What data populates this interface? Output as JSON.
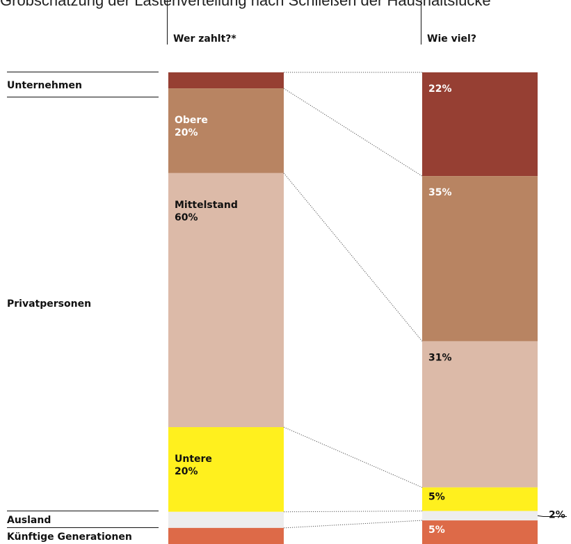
{
  "title": "Grobschätzung der Lastenverteilung nach Schließen der Haushaltslücke",
  "headers": {
    "left": "Wer zahlt?*",
    "right": "Wie viel?"
  },
  "row_labels": {
    "unternehmen": "Unternehmen",
    "privatpersonen": "Privatpersonen",
    "ausland": "Ausland",
    "kuenftige": "Künftige Generationen"
  },
  "colors": {
    "unternehmen": "#963f33",
    "obere": "#b88462",
    "mittelstand": "#dcbaa8",
    "untere": "#fff01e",
    "ausland": "#ededed",
    "kuenftige": "#dd6a48"
  },
  "chart_data": {
    "type": "bar",
    "title": "Grobschätzung der Lastenverteilung nach Schließen der Haushaltslücke",
    "categories": [
      "Wer zahlt?*",
      "Wie viel?"
    ],
    "segments": [
      {
        "key": "unternehmen",
        "group": "Unternehmen",
        "left_label": "",
        "right_label": "22%",
        "left_share": 3.8,
        "right_value": 22
      },
      {
        "key": "obere",
        "group": "Privatpersonen",
        "left_label": "Obere\n20%",
        "right_label": "35%",
        "left_share": 20,
        "right_value": 35
      },
      {
        "key": "mittelstand",
        "group": "Privatpersonen",
        "left_label": "Mittelstand\n60%",
        "right_label": "31%",
        "left_share": 60,
        "right_value": 31
      },
      {
        "key": "untere",
        "group": "Privatpersonen",
        "left_label": "Untere\n20%",
        "right_label": "5%",
        "left_share": 20,
        "right_value": 5
      },
      {
        "key": "ausland",
        "group": "Ausland",
        "left_label": "",
        "right_label": "2%",
        "left_share": 3.8,
        "right_value": 2
      },
      {
        "key": "kuenftige",
        "group": "Künftige Generationen",
        "left_label": "",
        "right_label": "5%",
        "left_share": 3.8,
        "right_value": 5
      }
    ]
  }
}
